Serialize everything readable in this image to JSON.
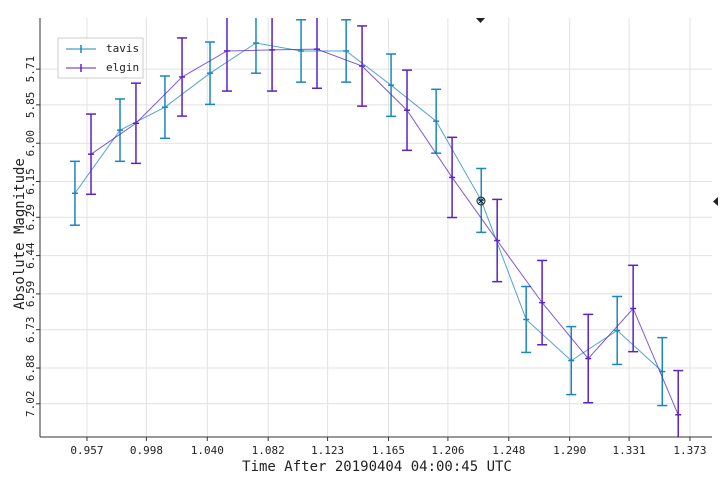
{
  "chart_data": {
    "type": "errorbar",
    "x_label": "Time After 20190404 04:00:45 UTC",
    "y_label": "Absolute Magnitude",
    "xlim": [
      0.9246,
      1.3882
    ],
    "ylim": [
      5.51,
      7.15
    ],
    "y_inverted": true,
    "grid": true,
    "legend": "upper left",
    "xticks": [
      0.957,
      0.998,
      {
        "value": 1.04,
        "label": "1.040"
      },
      1.082,
      1.123,
      1.165,
      1.206,
      1.248,
      {
        "value": 1.29,
        "label": "1.290"
      },
      1.331,
      1.373
    ],
    "yticks": [
      5.71,
      5.85,
      {
        "value": 6,
        "label": "6.00"
      },
      6.15,
      6.29,
      6.44,
      6.59,
      6.73,
      6.88,
      7.02
    ],
    "series": [
      {
        "name": "tavis",
        "color": "#1a86c0",
        "x": [
          0.9487,
          0.9798,
          1.0108,
          1.0419,
          1.0736,
          1.1047,
          1.1358,
          1.1668,
          1.1979,
          1.229,
          1.26,
          1.2911,
          1.3228,
          1.3539
        ],
        "values": [
          6.196,
          5.949,
          5.859,
          5.726,
          5.608,
          5.639,
          5.639,
          5.773,
          5.914,
          6.224,
          6.69,
          6.851,
          6.733,
          6.894
        ],
        "errors": [
          0.125,
          0.122,
          0.122,
          0.122,
          0.118,
          0.122,
          0.122,
          0.122,
          0.125,
          0.125,
          0.129,
          0.133,
          0.133,
          0.133
        ]
      },
      {
        "name": "elgin",
        "color": "#5a22c8",
        "x": [
          0.9598,
          0.9908,
          1.0226,
          1.0536,
          1.0847,
          1.1157,
          1.1468,
          1.1778,
          1.2089,
          1.24,
          1.271,
          1.3028,
          1.3338,
          1.3649
        ],
        "values": [
          6.043,
          5.922,
          5.741,
          5.639,
          5.635,
          5.632,
          5.698,
          5.871,
          6.134,
          6.381,
          6.624,
          6.843,
          6.647,
          7.063
        ],
        "errors": [
          0.157,
          0.157,
          0.153,
          0.157,
          0.161,
          0.153,
          0.157,
          0.157,
          0.157,
          0.161,
          0.165,
          0.173,
          0.169,
          0.173
        ]
      }
    ]
  }
}
